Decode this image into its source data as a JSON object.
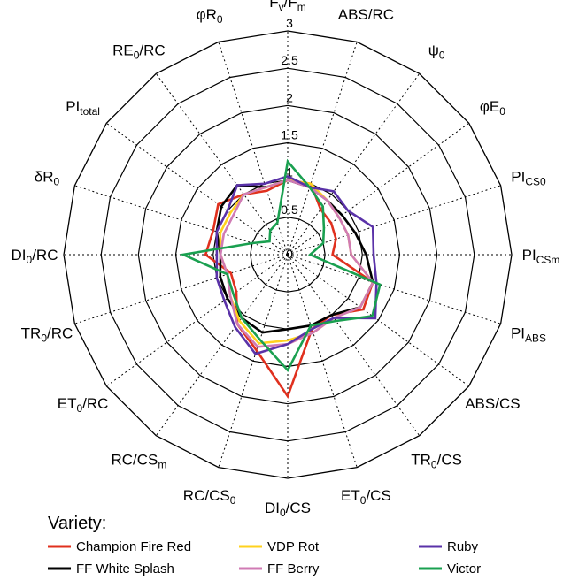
{
  "chart_data": {
    "type": "radar",
    "axes": [
      {
        "main": "F",
        "sub": "v",
        "mid": "/F",
        "sub2": "m"
      },
      {
        "main": "ABS/RC",
        "sub": "",
        "mid": "",
        "sub2": ""
      },
      {
        "main": "ψ",
        "sub": "0",
        "mid": "",
        "sub2": ""
      },
      {
        "main": "φE",
        "sub": "0",
        "mid": "",
        "sub2": ""
      },
      {
        "main": "PI",
        "sub": "CS0",
        "mid": "",
        "sub2": ""
      },
      {
        "main": "PI",
        "sub": "CSm",
        "mid": "",
        "sub2": ""
      },
      {
        "main": "PI",
        "sub": "ABS",
        "mid": "",
        "sub2": ""
      },
      {
        "main": "ABS/CS",
        "sub": "",
        "mid": "",
        "sub2": ""
      },
      {
        "main": "TR",
        "sub": "0",
        "mid": "/CS",
        "sub2": ""
      },
      {
        "main": "ET",
        "sub": "0",
        "mid": "/CS",
        "sub2": ""
      },
      {
        "main": "DI",
        "sub": "0",
        "mid": "/CS",
        "sub2": ""
      },
      {
        "main": "RC/CS",
        "sub": "0",
        "mid": "",
        "sub2": ""
      },
      {
        "main": "RC/CS",
        "sub": "m",
        "mid": "",
        "sub2": ""
      },
      {
        "main": "ET",
        "sub": "0",
        "mid": "/RC",
        "sub2": ""
      },
      {
        "main": "TR",
        "sub": "0",
        "mid": "/RC",
        "sub2": ""
      },
      {
        "main": "DI",
        "sub": "0",
        "mid": "/RC",
        "sub2": ""
      },
      {
        "main": "δR",
        "sub": "0",
        "mid": "",
        "sub2": ""
      },
      {
        "main": "PI",
        "sub": "total",
        "mid": "",
        "sub2": ""
      },
      {
        "main": "RE",
        "sub": "0",
        "mid": "/RC",
        "sub2": ""
      },
      {
        "main": "φR",
        "sub": "0",
        "mid": "",
        "sub2": ""
      }
    ],
    "rlim": [
      0,
      3
    ],
    "ticks": [
      "0",
      "0.5",
      "1",
      "1.5",
      "2",
      "2.5",
      "3"
    ],
    "tick_values": [
      0,
      0.5,
      1,
      1.5,
      2,
      2.5,
      3
    ],
    "grid": true,
    "legend_title": "Variety:",
    "legend_position": "bottom",
    "series": [
      {
        "name": "Champion Fire Red",
        "color": "#e0301e",
        "values": [
          1.0,
          1.0,
          0.75,
          0.72,
          0.68,
          0.6,
          1.2,
          1.25,
          1.0,
          1.05,
          1.9,
          1.35,
          1.15,
          0.85,
          0.8,
          1.1,
          1.05,
          1.15,
          1.0,
          0.9
        ]
      },
      {
        "name": "FF White Splash",
        "color": "#000000",
        "values": [
          1.0,
          0.95,
          0.9,
          0.9,
          0.95,
          1.05,
          1.2,
          1.2,
          1.0,
          1.0,
          1.0,
          1.1,
          1.05,
          1.0,
          0.95,
          0.9,
          1.0,
          1.1,
          1.15,
          0.95
        ]
      },
      {
        "name": "VDP Rot",
        "color": "#ffd21e",
        "values": [
          1.0,
          1.0,
          0.9,
          0.85,
          0.85,
          0.85,
          1.2,
          1.2,
          1.05,
          1.1,
          1.15,
          1.25,
          1.1,
          0.95,
          0.85,
          0.9,
          0.95,
          0.95,
          1.0,
          0.95
        ]
      },
      {
        "name": "FF Berry",
        "color": "#d07bb4",
        "values": [
          1.0,
          0.95,
          0.9,
          0.85,
          0.85,
          0.85,
          1.2,
          1.2,
          1.05,
          1.1,
          1.2,
          1.3,
          1.15,
          0.95,
          0.85,
          0.9,
          0.9,
          0.9,
          1.0,
          0.95
        ]
      },
      {
        "name": "Ruby",
        "color": "#5a32a8",
        "values": [
          1.05,
          0.95,
          1.05,
          1.0,
          1.2,
          1.15,
          1.25,
          1.45,
          1.05,
          1.05,
          1.2,
          1.4,
          1.2,
          1.05,
          1.0,
          0.95,
          1.0,
          1.0,
          1.15,
          1.0
        ]
      },
      {
        "name": "Victor",
        "color": "#1aa050",
        "values": [
          1.25,
          0.95,
          0.8,
          0.6,
          0.5,
          0.3,
          1.3,
          1.4,
          1.1,
          1.0,
          1.55,
          1.2,
          1.05,
          0.9,
          0.85,
          1.4,
          0.5,
          0.3,
          0.4,
          0.45
        ]
      }
    ]
  }
}
